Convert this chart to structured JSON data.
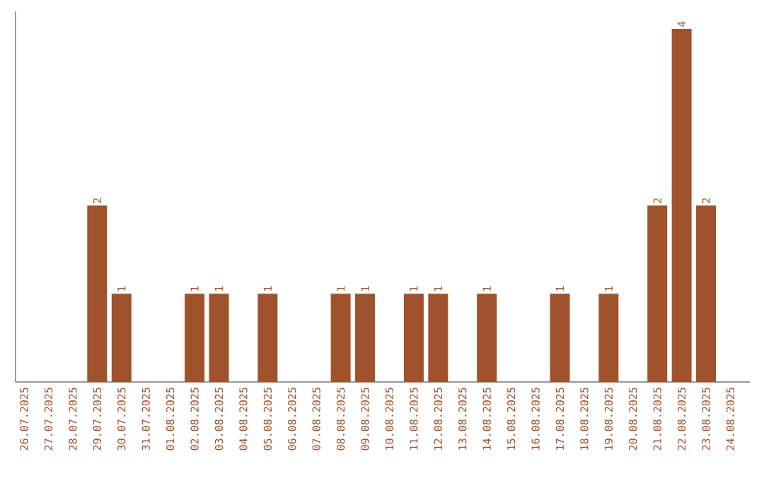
{
  "chart_data": {
    "type": "bar",
    "categories": [
      "26.07.2025",
      "27.07.2025",
      "28.07.2025",
      "29.07.2025",
      "30.07.2025",
      "31.07.2025",
      "01.08.2025",
      "02.08.2025",
      "03.08.2025",
      "04.08.2025",
      "05.08.2025",
      "06.08.2025",
      "07.08.2025",
      "08.08.2025",
      "09.08.2025",
      "10.08.2025",
      "11.08.2025",
      "12.08.2025",
      "13.08.2025",
      "14.08.2025",
      "15.08.2025",
      "16.08.2025",
      "17.08.2025",
      "18.08.2025",
      "19.08.2025",
      "20.08.2025",
      "21.08.2025",
      "22.08.2025",
      "23.08.2025",
      "24.08.2025"
    ],
    "values": [
      null,
      null,
      null,
      2,
      1,
      null,
      null,
      1,
      1,
      null,
      1,
      null,
      null,
      1,
      1,
      null,
      1,
      1,
      null,
      1,
      null,
      null,
      1,
      null,
      1,
      null,
      2,
      4,
      2,
      null
    ],
    "color": "#a0522d",
    "ylim": [
      0,
      4.2
    ],
    "data_labels": true,
    "tick_labels": "x"
  }
}
